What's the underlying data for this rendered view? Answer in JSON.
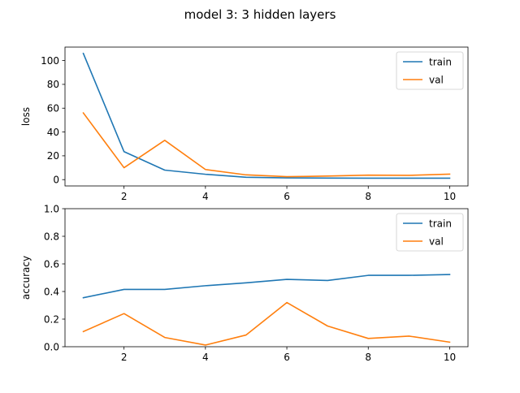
{
  "figure": {
    "title": "model 3: 3 hidden layers"
  },
  "colors": {
    "train": "#1f77b4",
    "val": "#ff7f0e"
  },
  "chart_data": [
    {
      "type": "line",
      "ylabel": "loss",
      "xlabel": "",
      "xlim": [
        0.55,
        10.45
      ],
      "ylim": [
        -5.3,
        111.3
      ],
      "xticks": [
        2,
        4,
        6,
        8,
        10
      ],
      "yticks": [
        0,
        20,
        40,
        60,
        80,
        100
      ],
      "legend": "top-right",
      "x": [
        1,
        2,
        3,
        4,
        5,
        6,
        7,
        8,
        9,
        10
      ],
      "series": [
        {
          "name": "train",
          "values": [
            106,
            23.5,
            8,
            4.5,
            2,
            1.5,
            1.3,
            1.2,
            1.2,
            1.2
          ]
        },
        {
          "name": "val",
          "values": [
            56,
            10,
            33,
            8.5,
            4,
            2.5,
            3,
            3.8,
            3.6,
            4.6
          ]
        }
      ]
    },
    {
      "type": "line",
      "ylabel": "accuracy",
      "xlabel": "",
      "xlim": [
        0.55,
        10.45
      ],
      "ylim": [
        0,
        1
      ],
      "xticks": [
        2,
        4,
        6,
        8,
        10
      ],
      "yticks": [
        0.0,
        0.2,
        0.4,
        0.6,
        0.8,
        1.0
      ],
      "legend": "top-right",
      "x": [
        1,
        2,
        3,
        4,
        5,
        6,
        7,
        8,
        9,
        10
      ],
      "series": [
        {
          "name": "train",
          "values": [
            0.355,
            0.415,
            0.415,
            0.442,
            0.463,
            0.488,
            0.48,
            0.517,
            0.517,
            0.523
          ]
        },
        {
          "name": "val",
          "values": [
            0.11,
            0.24,
            0.067,
            0.012,
            0.085,
            0.32,
            0.15,
            0.06,
            0.077,
            0.033
          ]
        }
      ]
    }
  ]
}
